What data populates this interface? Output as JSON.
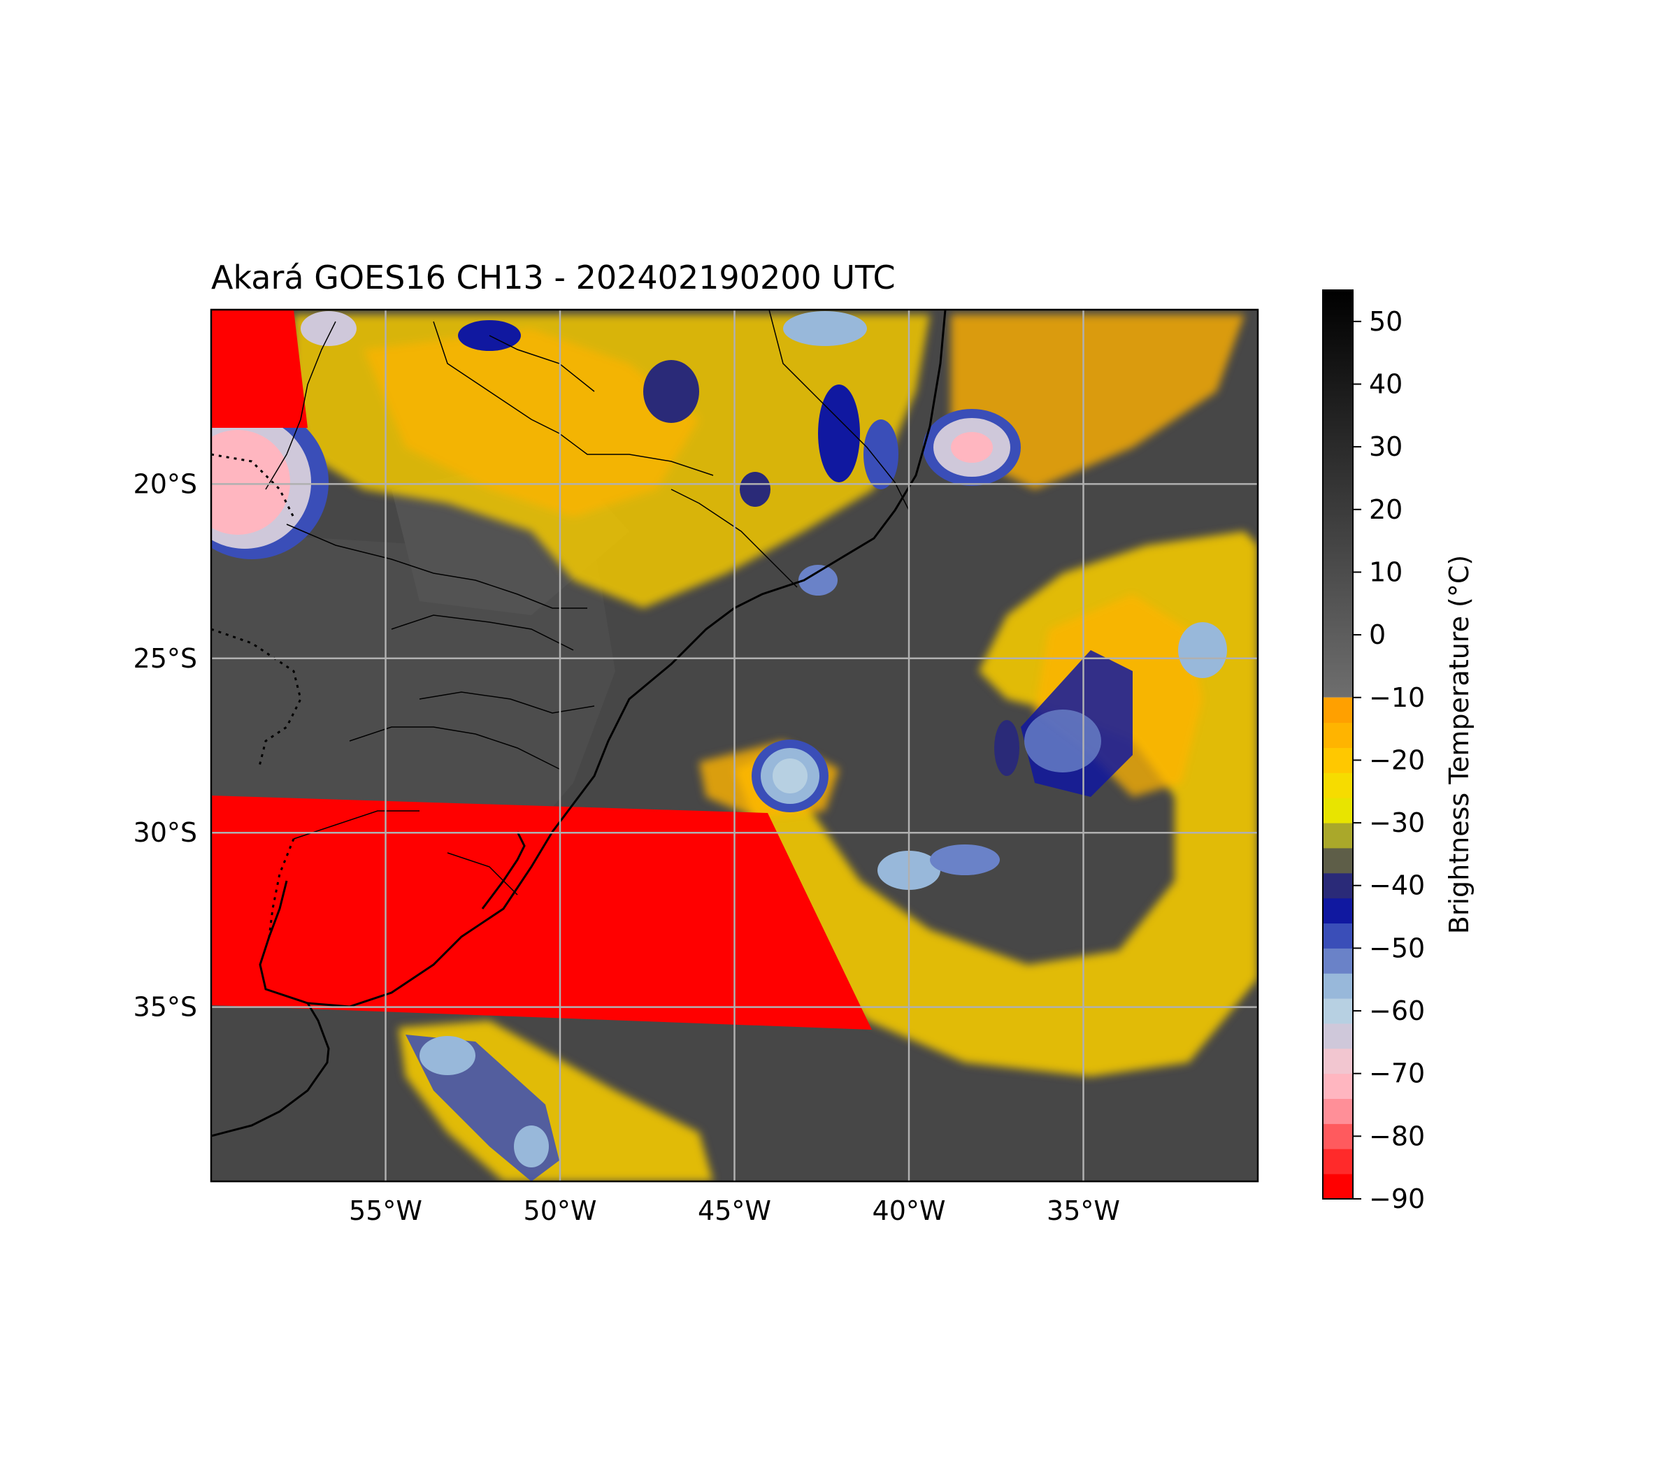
{
  "title": "Akará GOES16 CH13 - 202402190200 UTC",
  "map": {
    "lon_range": [
      -60,
      -30
    ],
    "lat_range": [
      -40,
      -15
    ],
    "lon_ticks": [
      {
        "value": -55,
        "label": "55°W"
      },
      {
        "value": -50,
        "label": "50°W"
      },
      {
        "value": -45,
        "label": "45°W"
      },
      {
        "value": -40,
        "label": "40°W"
      },
      {
        "value": -35,
        "label": "35°W"
      }
    ],
    "lat_ticks": [
      {
        "value": -20,
        "label": "20°S"
      },
      {
        "value": -25,
        "label": "25°S"
      },
      {
        "value": -30,
        "label": "30°S"
      },
      {
        "value": -35,
        "label": "35°S"
      }
    ],
    "grid": true,
    "colors": {
      "background": "#474747",
      "no_data_mask": "#ff0000",
      "coastline": "#000000",
      "gridline": "#b0b0b0"
    }
  },
  "colorbar": {
    "label": "Brightness Temperature (°C)",
    "range": [
      -90,
      55
    ],
    "ticks": [
      {
        "value": 50,
        "label": "50"
      },
      {
        "value": 40,
        "label": "40"
      },
      {
        "value": 30,
        "label": "30"
      },
      {
        "value": 20,
        "label": "20"
      },
      {
        "value": 10,
        "label": "10"
      },
      {
        "value": 0,
        "label": "0"
      },
      {
        "value": -10,
        "label": "−10"
      },
      {
        "value": -20,
        "label": "−20"
      },
      {
        "value": -30,
        "label": "−30"
      },
      {
        "value": -40,
        "label": "−40"
      },
      {
        "value": -50,
        "label": "−50"
      },
      {
        "value": -60,
        "label": "−60"
      },
      {
        "value": -70,
        "label": "−70"
      },
      {
        "value": -80,
        "label": "−80"
      },
      {
        "value": -90,
        "label": "−90"
      }
    ],
    "grayscale_top": "#000000",
    "grayscale_bottom": "#6e6e6e",
    "bands": [
      {
        "from": -90,
        "to": -86,
        "color": "#ff0000"
      },
      {
        "from": -86,
        "to": -82,
        "color": "#ff2a2a"
      },
      {
        "from": -82,
        "to": -78,
        "color": "#ff5a5e"
      },
      {
        "from": -78,
        "to": -74,
        "color": "#ff8f98"
      },
      {
        "from": -74,
        "to": -70,
        "color": "#ffb6c0"
      },
      {
        "from": -70,
        "to": -66,
        "color": "#f2c6d0"
      },
      {
        "from": -66,
        "to": -62,
        "color": "#cfc8da"
      },
      {
        "from": -62,
        "to": -58,
        "color": "#b7d0e2"
      },
      {
        "from": -58,
        "to": -54,
        "color": "#98b8da"
      },
      {
        "from": -54,
        "to": -50,
        "color": "#6a82c8"
      },
      {
        "from": -50,
        "to": -46,
        "color": "#3a4eb8"
      },
      {
        "from": -46,
        "to": -42,
        "color": "#1018a0"
      },
      {
        "from": -42,
        "to": -38,
        "color": "#2a2a78"
      },
      {
        "from": -38,
        "to": -34,
        "color": "#5e5e48"
      },
      {
        "from": -34,
        "to": -30,
        "color": "#aaa82a"
      },
      {
        "from": -30,
        "to": -26,
        "color": "#e8e400"
      },
      {
        "from": -26,
        "to": -22,
        "color": "#f6dc00"
      },
      {
        "from": -22,
        "to": -18,
        "color": "#ffc800"
      },
      {
        "from": -18,
        "to": -14,
        "color": "#ffb400"
      },
      {
        "from": -14,
        "to": -10,
        "color": "#ffa000"
      }
    ]
  }
}
